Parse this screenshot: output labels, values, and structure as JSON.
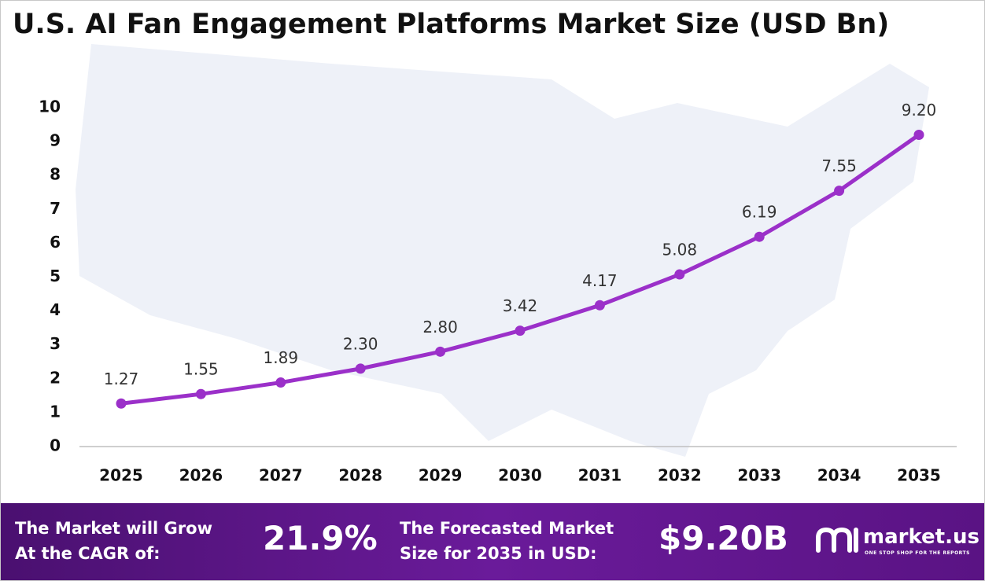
{
  "chart_data": {
    "type": "line",
    "title": "U.S. AI Fan Engagement Platforms Market Size (USD Bn)",
    "categories": [
      "2025",
      "2026",
      "2027",
      "2028",
      "2029",
      "2030",
      "2031",
      "2032",
      "2033",
      "2034",
      "2035"
    ],
    "values": [
      1.27,
      1.55,
      1.89,
      2.3,
      2.8,
      3.42,
      4.17,
      5.08,
      6.19,
      7.55,
      9.2
    ],
    "value_labels": [
      "1.27",
      "1.55",
      "1.89",
      "2.30",
      "2.80",
      "3.42",
      "4.17",
      "5.08",
      "6.19",
      "7.55",
      "9.20"
    ],
    "color": "#9b30c9",
    "ylim": [
      0,
      10
    ],
    "yticks": [
      0,
      1,
      2,
      3,
      4,
      5,
      6,
      7,
      8,
      9,
      10
    ],
    "grid": false
  },
  "footer": {
    "cagr_text": [
      "The Market will Grow",
      "At the CAGR of:"
    ],
    "cagr_value": "21.9%",
    "forecast_text": [
      "The Forecasted Market",
      "Size for 2035 in USD:"
    ],
    "forecast_value": "$9.20B",
    "logo": "market.us",
    "tagline": "ONE STOP SHOP FOR THE REPORTS"
  }
}
